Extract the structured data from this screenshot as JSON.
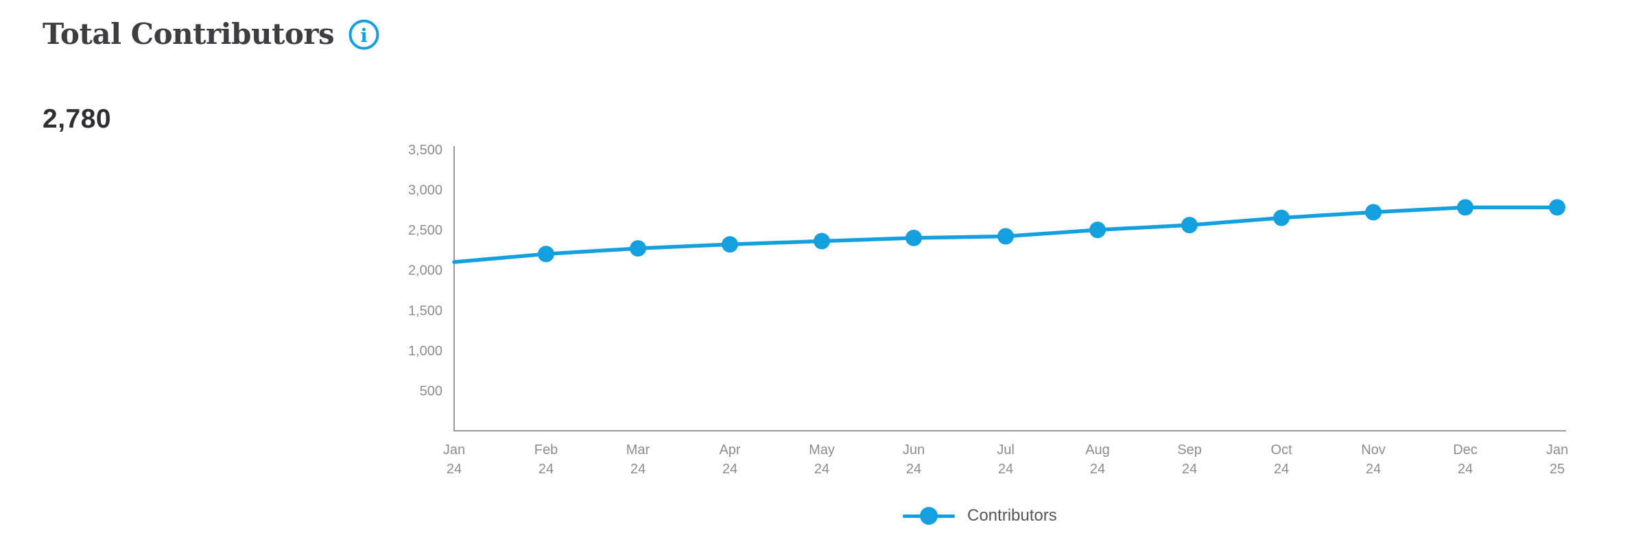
{
  "header": {
    "title": "Total Contributors",
    "info_icon": "circled-i"
  },
  "metric": {
    "value": "2,780"
  },
  "legend": {
    "marker_icon": "line-dot",
    "label": "Contributors"
  },
  "chart_data": {
    "type": "line",
    "title": "Total Contributors",
    "categories": [
      "Jan 24",
      "Feb 24",
      "Mar 24",
      "Apr 24",
      "May 24",
      "Jun 24",
      "Jul 24",
      "Aug 24",
      "Sep 24",
      "Oct 24",
      "Nov 24",
      "Dec 24",
      "Jan 25"
    ],
    "series": [
      {
        "name": "Contributors",
        "values": [
          2100,
          2200,
          2270,
          2320,
          2360,
          2400,
          2420,
          2500,
          2560,
          2650,
          2720,
          2780,
          2780
        ]
      }
    ],
    "xlabel": "",
    "ylabel": "",
    "ylim": [
      0,
      3500
    ],
    "yticks": [
      500,
      1000,
      1500,
      2000,
      2500,
      3000,
      3500
    ],
    "ytick_labels": [
      "500",
      "1,000",
      "1,500",
      "2,000",
      "2,500",
      "3,000",
      "3,500"
    ],
    "grid": false,
    "legend_position": "bottom",
    "marker_shape": "circle",
    "first_point_marker_hidden": true,
    "colors": {
      "line": "#149fdf",
      "axis": "#999999",
      "tick_text": "#8c8c8c",
      "legend_text": "#55565a",
      "accent": "#149fdf"
    }
  }
}
